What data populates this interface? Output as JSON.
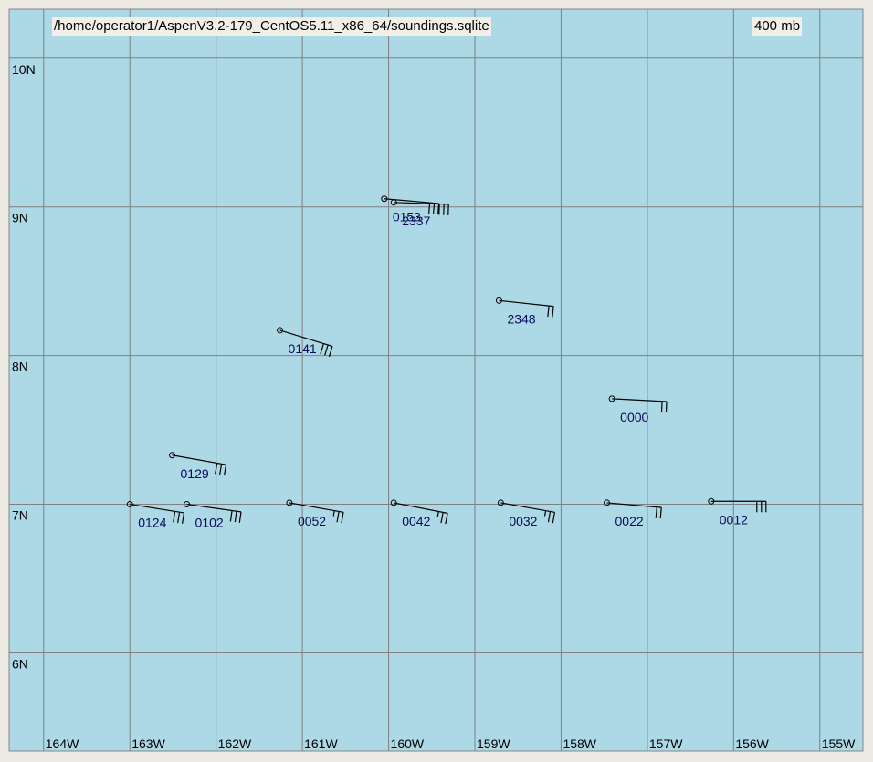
{
  "header": {
    "file": "/home/operator1/AspenV3.2-179_CentOS5.11_x86_64/soundings.sqlite",
    "level": "400 mb"
  },
  "map": {
    "type": "station-plot",
    "xlim": [
      -164.4,
      -154.5
    ],
    "ylim": [
      5.34,
      10.33
    ],
    "xticks": [
      {
        "value": -164,
        "label": "164W"
      },
      {
        "value": -163,
        "label": "163W"
      },
      {
        "value": -162,
        "label": "162W"
      },
      {
        "value": -161,
        "label": "161W"
      },
      {
        "value": -160,
        "label": "160W"
      },
      {
        "value": -159,
        "label": "159W"
      },
      {
        "value": -158,
        "label": "158W"
      },
      {
        "value": -157,
        "label": "157W"
      },
      {
        "value": -156,
        "label": "156W"
      },
      {
        "value": -155,
        "label": "155W"
      }
    ],
    "yticks": [
      {
        "value": 10,
        "label": "10N"
      },
      {
        "value": 9,
        "label": "9N"
      },
      {
        "value": 8,
        "label": "8N"
      },
      {
        "value": 7,
        "label": "7N"
      },
      {
        "value": 6,
        "label": "6N"
      }
    ],
    "grid": true,
    "stations": [
      {
        "label": "0153",
        "lon": -160.05,
        "lat": 9.055,
        "direction": 95,
        "speed": 30
      },
      {
        "label": "2337",
        "lon": -159.94,
        "lat": 9.03,
        "direction": 92,
        "speed": 30
      },
      {
        "label": "2348",
        "lon": -158.72,
        "lat": 8.37,
        "direction": 96,
        "speed": 20
      },
      {
        "label": "0141",
        "lon": -161.26,
        "lat": 8.17,
        "direction": 107,
        "speed": 30
      },
      {
        "label": "0000",
        "lon": -157.41,
        "lat": 7.71,
        "direction": 93,
        "speed": 20
      },
      {
        "label": "0129",
        "lon": -162.51,
        "lat": 7.33,
        "direction": 100,
        "speed": 30
      },
      {
        "label": "0124",
        "lon": -163.0,
        "lat": 7.0,
        "direction": 99,
        "speed": 30
      },
      {
        "label": "0102",
        "lon": -162.34,
        "lat": 7.0,
        "direction": 98,
        "speed": 30
      },
      {
        "label": "0052",
        "lon": -161.15,
        "lat": 7.01,
        "direction": 100,
        "speed": 25
      },
      {
        "label": "0042",
        "lon": -159.94,
        "lat": 7.01,
        "direction": 101,
        "speed": 25
      },
      {
        "label": "0032",
        "lon": -158.7,
        "lat": 7.01,
        "direction": 100,
        "speed": 25
      },
      {
        "label": "0022",
        "lon": -157.47,
        "lat": 7.01,
        "direction": 95,
        "speed": 20
      },
      {
        "label": "0012",
        "lon": -156.26,
        "lat": 7.02,
        "direction": 90,
        "speed": 30
      }
    ]
  }
}
